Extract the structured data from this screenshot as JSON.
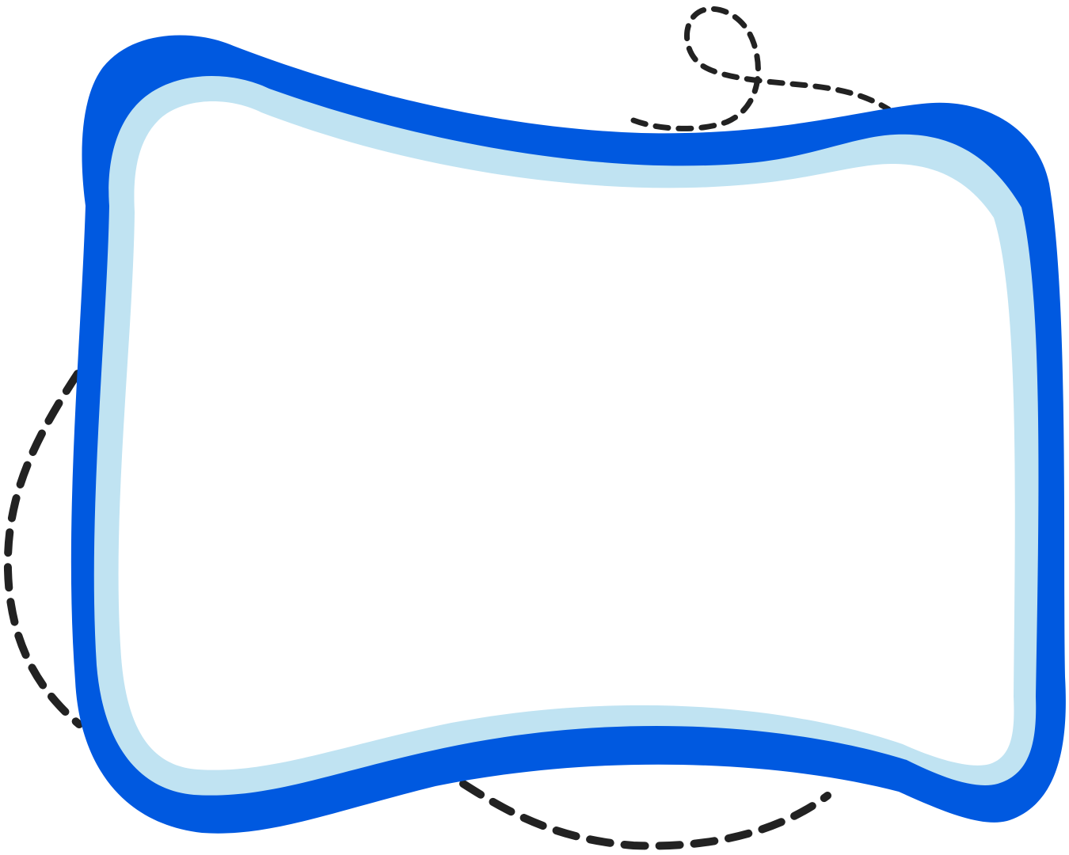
{
  "frame": {
    "colors": {
      "outer_fill": "#0059E0",
      "inner_ring": "#C0E3F2",
      "inner_fill": "#FFFFFF",
      "dashed_line": "#222222"
    }
  }
}
